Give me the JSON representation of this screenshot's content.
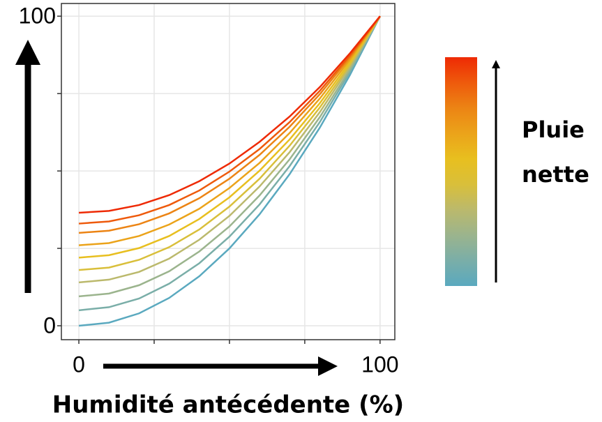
{
  "chart_data": {
    "type": "line",
    "xlabel": "Humidité antécédente (%)",
    "colorbar_label": [
      "Pluie",
      "nette"
    ],
    "x": [
      0,
      10,
      20,
      30,
      40,
      50,
      60,
      70,
      80,
      90,
      100
    ],
    "series": [
      {
        "color": "#5aa9bf",
        "values": [
          0,
          1,
          4,
          9,
          16,
          25,
          36,
          49,
          64,
          81,
          100
        ]
      },
      {
        "color": "#7aaea8",
        "values": [
          5,
          6,
          8.8,
          13.6,
          20.2,
          28.8,
          39.2,
          51.6,
          65.8,
          82,
          100
        ]
      },
      {
        "color": "#9bb48d",
        "values": [
          9.5,
          10.4,
          13.1,
          17.6,
          24,
          32.1,
          42.1,
          53.8,
          67.4,
          82.8,
          100
        ]
      },
      {
        "color": "#bbb96c",
        "values": [
          14,
          14.9,
          17.4,
          21.7,
          27.8,
          35.5,
          45,
          56.1,
          69,
          83.7,
          100
        ]
      },
      {
        "color": "#d9bf3a",
        "values": [
          18,
          18.8,
          21.3,
          25.4,
          31.1,
          38.5,
          47.5,
          58.2,
          70.5,
          84.4,
          100
        ]
      },
      {
        "color": "#e8bf1f",
        "values": [
          22,
          22.8,
          25.1,
          29,
          34.5,
          41.5,
          50.1,
          60.2,
          71.9,
          85.2,
          100
        ]
      },
      {
        "color": "#eba31a",
        "values": [
          26,
          26.7,
          29,
          32.7,
          37.8,
          44.5,
          52.6,
          62.3,
          73.4,
          86,
          100
        ]
      },
      {
        "color": "#ec8414",
        "values": [
          30,
          30.7,
          32.8,
          36.3,
          41.2,
          47.5,
          55.2,
          64.3,
          74.8,
          86.7,
          100
        ]
      },
      {
        "color": "#ee5a0c",
        "values": [
          33,
          33.7,
          35.7,
          39,
          43.7,
          49.8,
          57.1,
          65.8,
          75.9,
          87.3,
          100
        ]
      },
      {
        "color": "#ee2a04",
        "values": [
          36.5,
          37.1,
          39,
          42.2,
          46.7,
          52.4,
          59.4,
          67.6,
          77.1,
          88,
          100
        ]
      }
    ],
    "xlim": [
      -5.8,
      104.9
    ],
    "ylim": [
      -4.5,
      104.1
    ],
    "xticks": [
      0,
      {
        "value": 25,
        "label": null
      },
      {
        "value": 50,
        "label": null
      },
      {
        "value": 75,
        "label": null
      },
      100
    ],
    "yticks": [
      0,
      {
        "value": 25,
        "label": null
      },
      {
        "value": 50,
        "label": null
      },
      {
        "value": 75,
        "label": null
      },
      100
    ],
    "grid": true
  }
}
